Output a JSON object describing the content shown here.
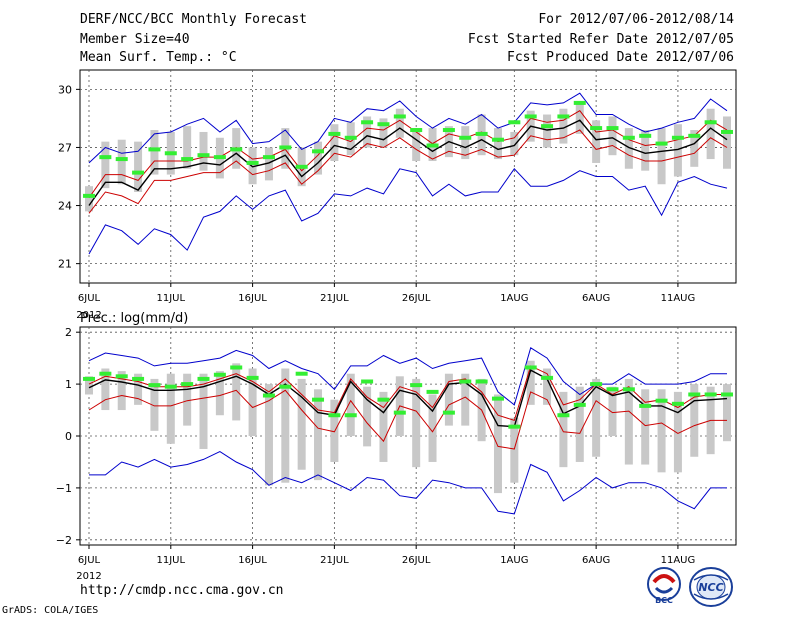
{
  "header": {
    "title": "DERF/NCC/BCC Monthly Forecast",
    "member_size": "Member Size=40",
    "variable": "Mean Surf. Temp.: °C",
    "period": "For 2012/07/06-2012/08/14",
    "started": "Fcst Started Refer Date 2012/07/05",
    "produced": "Fcst Produced Date 2012/07/06"
  },
  "footer": {
    "url": "http://cmdp.ncc.cma.gov.cn",
    "grads": "GrADS: COLA/IGES",
    "logo_bcc": "BCC",
    "logo_ncc": "NCC"
  },
  "colors": {
    "box": "#c8c8c8",
    "ensemble_mean": "#000000",
    "spread_bound": "#cc0000",
    "extreme_bound": "#0000cc",
    "median_marker": "#33ee33",
    "grid": "#555555"
  },
  "chart_data": [
    {
      "type": "line",
      "title": "Mean Surf. Temp.: °C",
      "x": [
        1,
        2,
        3,
        4,
        5,
        6,
        7,
        8,
        9,
        10,
        11,
        12,
        13,
        14,
        15,
        16,
        17,
        18,
        19,
        20,
        21,
        22,
        23,
        24,
        25,
        26,
        27,
        28,
        29,
        30,
        31,
        32,
        33,
        34,
        35,
        36,
        37,
        38,
        39,
        40
      ],
      "xticks": [
        {
          "x": 1,
          "label": "6JUL"
        },
        {
          "x": 6,
          "label": "11JUL"
        },
        {
          "x": 11,
          "label": "16JUL"
        },
        {
          "x": 16,
          "label": "21JUL"
        },
        {
          "x": 21,
          "label": "26JUL"
        },
        {
          "x": 27,
          "label": "1AUG"
        },
        {
          "x": 32,
          "label": "6AUG"
        },
        {
          "x": 37,
          "label": "11AUG"
        }
      ],
      "xsublabel": "2012",
      "ylim": [
        20,
        31
      ],
      "yticks": [
        21,
        24,
        27,
        30
      ],
      "grid": true,
      "series": [
        {
          "name": "max",
          "values": [
            26.2,
            27.0,
            26.7,
            26.8,
            27.7,
            27.8,
            28.2,
            28.5,
            27.8,
            28.4,
            27.2,
            27.3,
            27.9,
            26.9,
            27.3,
            28.5,
            28.3,
            29.0,
            28.9,
            29.4,
            28.6,
            28.0,
            28.5,
            28.2,
            28.7,
            28.0,
            28.3,
            29.3,
            29.2,
            29.3,
            29.8,
            28.7,
            28.7,
            28.2,
            27.8,
            28.0,
            28.3,
            28.5,
            29.5,
            28.9
          ]
        },
        {
          "name": "upper",
          "values": [
            24.4,
            25.6,
            25.6,
            25.3,
            26.3,
            26.3,
            26.3,
            26.5,
            26.5,
            27.0,
            26.4,
            26.5,
            26.9,
            25.8,
            26.6,
            27.6,
            27.3,
            28.0,
            27.9,
            28.4,
            27.8,
            27.2,
            27.7,
            27.5,
            27.8,
            27.3,
            27.5,
            28.5,
            28.3,
            28.4,
            28.9,
            27.8,
            27.9,
            27.4,
            27.1,
            27.2,
            27.4,
            27.6,
            28.4,
            27.9
          ]
        },
        {
          "name": "mean",
          "values": [
            24.0,
            25.2,
            25.2,
            24.8,
            25.9,
            25.9,
            26.0,
            26.2,
            26.1,
            26.7,
            26.0,
            26.2,
            26.6,
            25.5,
            26.2,
            27.1,
            26.9,
            27.6,
            27.4,
            28.0,
            27.4,
            26.8,
            27.3,
            27.0,
            27.4,
            26.9,
            27.1,
            28.1,
            27.9,
            28.0,
            28.4,
            27.4,
            27.5,
            27.0,
            26.7,
            26.8,
            26.9,
            27.2,
            28.0,
            27.4
          ]
        },
        {
          "name": "lower",
          "values": [
            23.6,
            24.7,
            24.5,
            24.1,
            25.3,
            25.3,
            25.5,
            25.7,
            25.7,
            26.3,
            25.6,
            25.8,
            26.2,
            25.1,
            25.8,
            26.7,
            26.5,
            27.2,
            27.0,
            27.5,
            26.9,
            26.4,
            26.8,
            26.6,
            26.9,
            26.5,
            26.6,
            27.6,
            27.4,
            27.5,
            27.9,
            26.9,
            27.1,
            26.6,
            26.3,
            26.3,
            26.5,
            26.7,
            27.5,
            27.0
          ]
        },
        {
          "name": "min",
          "values": [
            21.5,
            23.0,
            22.7,
            22.0,
            22.8,
            22.5,
            21.7,
            23.4,
            23.7,
            24.5,
            23.8,
            24.5,
            24.8,
            23.2,
            23.6,
            24.6,
            24.5,
            24.9,
            24.6,
            25.9,
            25.7,
            24.5,
            25.1,
            24.5,
            24.7,
            24.7,
            25.9,
            25.0,
            25.0,
            25.3,
            25.8,
            25.5,
            25.5,
            24.8,
            25.0,
            23.5,
            25.2,
            25.5,
            25.1,
            24.9
          ]
        },
        {
          "name": "box_high",
          "values": [
            25.0,
            27.3,
            27.4,
            27.3,
            27.9,
            27.8,
            28.1,
            27.8,
            27.5,
            28.0,
            27.0,
            27.0,
            28.0,
            27.0,
            27.3,
            28.2,
            28.3,
            28.6,
            28.5,
            29.0,
            28.0,
            28.0,
            28.1,
            28.1,
            28.7,
            28.0,
            27.8,
            28.9,
            28.7,
            29.0,
            29.4,
            28.4,
            28.6,
            28.0,
            27.9,
            28.0,
            28.2,
            27.9,
            29.0,
            28.6
          ]
        },
        {
          "name": "box_low",
          "values": [
            23.7,
            24.9,
            25.1,
            24.7,
            25.6,
            25.6,
            25.9,
            25.8,
            25.4,
            25.9,
            25.1,
            25.3,
            25.9,
            25.0,
            25.6,
            26.3,
            26.6,
            27.0,
            27.0,
            27.5,
            26.3,
            26.3,
            26.5,
            26.4,
            26.6,
            26.4,
            26.6,
            27.3,
            27.0,
            27.2,
            27.7,
            26.2,
            26.6,
            25.9,
            25.8,
            25.1,
            25.5,
            26.0,
            26.4,
            25.9
          ]
        },
        {
          "name": "median",
          "values": [
            24.5,
            26.5,
            26.4,
            25.7,
            26.9,
            26.7,
            26.4,
            26.6,
            26.5,
            26.9,
            26.2,
            26.5,
            27.0,
            26.0,
            26.8,
            27.7,
            27.5,
            28.3,
            28.2,
            28.6,
            27.9,
            27.1,
            27.9,
            27.5,
            27.7,
            27.4,
            28.3,
            28.6,
            28.1,
            28.6,
            29.3,
            28.0,
            28.0,
            27.5,
            27.6,
            27.2,
            27.5,
            27.6,
            28.3,
            27.8
          ]
        }
      ]
    },
    {
      "type": "line",
      "title": "Prec.: log(mm/d)",
      "x": [
        1,
        2,
        3,
        4,
        5,
        6,
        7,
        8,
        9,
        10,
        11,
        12,
        13,
        14,
        15,
        16,
        17,
        18,
        19,
        20,
        21,
        22,
        23,
        24,
        25,
        26,
        27,
        28,
        29,
        30,
        31,
        32,
        33,
        34,
        35,
        36,
        37,
        38,
        39,
        40
      ],
      "xticks": [
        {
          "x": 1,
          "label": "6JUL"
        },
        {
          "x": 6,
          "label": "11JUL"
        },
        {
          "x": 11,
          "label": "16JUL"
        },
        {
          "x": 16,
          "label": "21JUL"
        },
        {
          "x": 21,
          "label": "26JUL"
        },
        {
          "x": 27,
          "label": "1AUG"
        },
        {
          "x": 32,
          "label": "6AUG"
        },
        {
          "x": 37,
          "label": "11AUG"
        }
      ],
      "xsublabel": "2012",
      "ylim": [
        -2.1,
        2.1
      ],
      "yticks": [
        -2,
        -1,
        0,
        1,
        2
      ],
      "grid": true,
      "series": [
        {
          "name": "max",
          "values": [
            1.45,
            1.6,
            1.55,
            1.5,
            1.35,
            1.4,
            1.4,
            1.45,
            1.5,
            1.65,
            1.55,
            1.3,
            1.45,
            1.3,
            1.2,
            0.9,
            1.35,
            1.35,
            1.55,
            1.4,
            1.5,
            1.3,
            1.4,
            1.45,
            1.5,
            0.85,
            0.6,
            1.7,
            1.5,
            1.05,
            0.8,
            1.0,
            1.0,
            1.2,
            1.0,
            1.0,
            1.0,
            1.05,
            1.2,
            1.2
          ]
        },
        {
          "name": "upper",
          "values": [
            1.0,
            1.15,
            1.1,
            1.05,
            0.95,
            0.95,
            0.95,
            1.0,
            1.1,
            1.2,
            1.05,
            0.85,
            1.1,
            0.8,
            0.5,
            0.45,
            1.1,
            0.75,
            0.55,
            0.95,
            0.85,
            0.55,
            1.05,
            1.1,
            0.85,
            0.4,
            0.3,
            1.35,
            1.2,
            0.6,
            0.7,
            1.0,
            0.8,
            0.95,
            0.65,
            0.7,
            0.55,
            0.75,
            0.8,
            0.8
          ]
        },
        {
          "name": "mean",
          "values": [
            0.93,
            1.08,
            1.04,
            0.98,
            0.88,
            0.88,
            0.9,
            0.95,
            1.05,
            1.15,
            1.0,
            0.8,
            1.0,
            0.75,
            0.45,
            0.4,
            1.05,
            0.7,
            0.45,
            0.88,
            0.8,
            0.48,
            1.0,
            1.03,
            0.8,
            0.2,
            0.18,
            1.27,
            1.1,
            0.43,
            0.58,
            0.95,
            0.78,
            0.85,
            0.58,
            0.58,
            0.45,
            0.68,
            0.7,
            0.72
          ]
        },
        {
          "name": "lower",
          "values": [
            0.5,
            0.7,
            0.78,
            0.72,
            0.58,
            0.58,
            0.68,
            0.73,
            0.78,
            0.88,
            0.55,
            0.68,
            0.88,
            0.5,
            0.15,
            0.08,
            0.68,
            0.25,
            -0.1,
            0.58,
            0.48,
            0.08,
            0.6,
            0.75,
            0.5,
            -0.2,
            -0.25,
            0.85,
            0.7,
            0.08,
            0.05,
            0.68,
            0.45,
            0.48,
            0.2,
            0.25,
            0.05,
            0.2,
            0.3,
            0.3
          ]
        },
        {
          "name": "min",
          "values": [
            -0.75,
            -0.75,
            -0.5,
            -0.6,
            -0.45,
            -0.6,
            -0.55,
            -0.45,
            -0.3,
            -0.5,
            -0.65,
            -0.95,
            -0.8,
            -0.9,
            -0.75,
            -0.9,
            -1.05,
            -0.8,
            -0.85,
            -1.15,
            -1.2,
            -0.85,
            -0.9,
            -1.0,
            -1.0,
            -1.45,
            -1.5,
            -0.55,
            -0.7,
            -1.25,
            -1.05,
            -0.8,
            -1.0,
            -0.9,
            -0.9,
            -1.0,
            -1.25,
            -1.4,
            -1.0,
            -1.0
          ]
        },
        {
          "name": "box_high",
          "values": [
            1.15,
            1.3,
            1.25,
            1.2,
            1.1,
            1.2,
            1.2,
            1.2,
            1.25,
            1.4,
            1.3,
            1.0,
            1.3,
            1.1,
            0.9,
            0.7,
            1.2,
            0.95,
            0.85,
            1.15,
            1.1,
            0.8,
            1.2,
            1.2,
            1.1,
            0.8,
            0.35,
            1.45,
            1.3,
            0.85,
            0.95,
            1.1,
            0.95,
            1.1,
            0.9,
            0.9,
            0.85,
            1.0,
            0.95,
            1.0
          ]
        },
        {
          "name": "box_low",
          "values": [
            0.8,
            0.5,
            0.5,
            0.6,
            0.1,
            -0.15,
            0.2,
            -0.25,
            0.4,
            0.3,
            0.0,
            -0.95,
            -0.9,
            -0.65,
            -0.85,
            -0.5,
            0.0,
            -0.2,
            -0.5,
            0.0,
            -0.6,
            -0.5,
            0.2,
            0.2,
            -0.1,
            -1.1,
            -0.9,
            0.6,
            0.6,
            -0.6,
            -0.5,
            -0.4,
            0.0,
            -0.55,
            -0.55,
            -0.7,
            -0.7,
            -0.4,
            -0.35,
            -0.1
          ]
        },
        {
          "name": "median",
          "values": [
            1.1,
            1.2,
            1.15,
            1.1,
            0.98,
            0.95,
            1.0,
            1.1,
            1.18,
            1.32,
            1.12,
            0.78,
            0.95,
            1.2,
            0.7,
            0.4,
            0.4,
            1.05,
            0.7,
            0.45,
            0.98,
            0.85,
            0.45,
            1.05,
            1.05,
            0.72,
            0.18,
            1.32,
            1.12,
            0.4,
            0.6,
            1.0,
            0.9,
            0.9,
            0.58,
            0.68,
            0.62,
            0.8,
            0.8,
            0.8
          ]
        }
      ]
    }
  ]
}
